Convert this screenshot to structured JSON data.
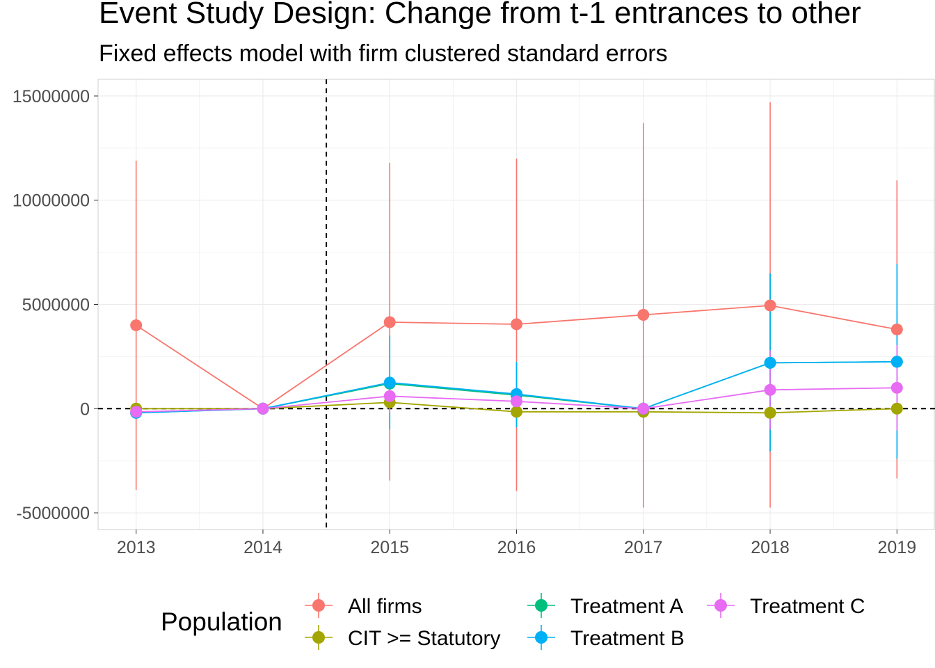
{
  "title": "Event Study Design: Change from t-1 entrances to other",
  "subtitle": "Fixed effects model with firm clustered standard errors",
  "chart_data": {
    "type": "line",
    "x": [
      2013,
      2014,
      2015,
      2016,
      2017,
      2018,
      2019
    ],
    "xlim": [
      2012.7,
      2019.3
    ],
    "ylim": [
      -5800000,
      15800000
    ],
    "y_ticks": [
      -5000000,
      0,
      5000000,
      10000000,
      15000000
    ],
    "y_tick_labels": [
      "-5000000",
      "0",
      "5000000",
      "10000000",
      "15000000"
    ],
    "x_tick_labels": [
      "2013",
      "2014",
      "2015",
      "2016",
      "2017",
      "2018",
      "2019"
    ],
    "reference_lines": {
      "hline": 0,
      "vline": 2014.5,
      "style": "dashed"
    },
    "grid": true,
    "error_bars": true,
    "legend": {
      "title": "Population",
      "position": "bottom"
    },
    "series": [
      {
        "name": "All firms",
        "color": "#F8766D",
        "values": [
          4000000,
          0,
          4150000,
          4050000,
          4500000,
          4950000,
          3800000
        ],
        "lower": [
          -3900000,
          0,
          -3450000,
          -3950000,
          -4750000,
          -4750000,
          -3350000
        ],
        "upper": [
          11900000,
          0,
          11800000,
          12000000,
          13700000,
          14700000,
          10950000
        ]
      },
      {
        "name": "CIT >= Statutory",
        "color": "#A3A500",
        "values": [
          0,
          0,
          300000,
          -150000,
          -150000,
          -200000,
          0
        ],
        "lower": [
          -150000,
          0,
          150000,
          -300000,
          -300000,
          -350000,
          -100000
        ],
        "upper": [
          150000,
          0,
          450000,
          0,
          0,
          -50000,
          100000
        ]
      },
      {
        "name": "Treatment A",
        "color": "#00BF7D",
        "values": [
          -200000,
          0,
          1200000,
          650000,
          0,
          2200000,
          2250000
        ],
        "lower": [
          -400000,
          0,
          -1000000,
          -900000,
          -50000,
          -2050000,
          -2400000
        ],
        "upper": [
          0,
          0,
          3450000,
          2200000,
          50000,
          6450000,
          6900000
        ]
      },
      {
        "name": "Treatment B",
        "color": "#00B0F6",
        "values": [
          -200000,
          0,
          1250000,
          700000,
          0,
          2200000,
          2250000
        ],
        "lower": [
          -400000,
          0,
          -1000000,
          -900000,
          -50000,
          -2050000,
          -2400000
        ],
        "upper": [
          0,
          0,
          3500000,
          2250000,
          50000,
          6500000,
          6950000
        ]
      },
      {
        "name": "Treatment C",
        "color": "#E76BF3",
        "values": [
          -150000,
          0,
          600000,
          350000,
          0,
          900000,
          1000000
        ],
        "lower": [
          -300000,
          0,
          -200000,
          -300000,
          -50000,
          -1000000,
          -1050000
        ],
        "upper": [
          0,
          0,
          1400000,
          1000000,
          50000,
          2800000,
          3050000
        ]
      }
    ]
  }
}
